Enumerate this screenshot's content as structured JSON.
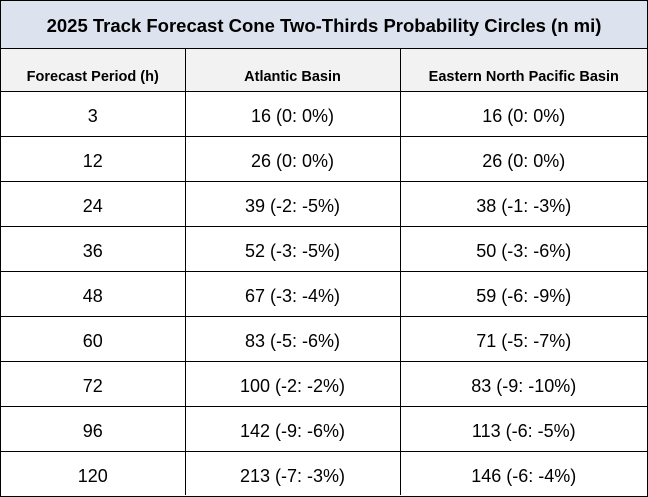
{
  "title": "2025 Track Forecast Cone Two-Thirds Probability Circles (n mi)",
  "columns": [
    "Forecast Period (h)",
    "Atlantic Basin",
    "Eastern North Pacific Basin"
  ],
  "rows": [
    [
      "3",
      "16 (0: 0%)",
      "16 (0: 0%)"
    ],
    [
      "12",
      "26 (0: 0%)",
      "26 (0: 0%)"
    ],
    [
      "24",
      "39 (-2: -5%)",
      "38 (-1: -3%)"
    ],
    [
      "36",
      "52 (-3: -5%)",
      "50 (-3: -6%)"
    ],
    [
      "48",
      "67 (-3: -4%)",
      "59 (-6: -9%)"
    ],
    [
      "60",
      "83 (-5: -6%)",
      "71 (-5: -7%)"
    ],
    [
      "72",
      "100 (-2: -2%)",
      "83 (-9: -10%)"
    ],
    [
      "96",
      "142 (-9: -6%)",
      "113 (-6: -5%)"
    ],
    [
      "120",
      "213 (-7: -3%)",
      "146 (-6: -4%)"
    ]
  ],
  "colors": {
    "title_background": "#dce3ee",
    "header_background": "#f2f2f2",
    "border": "#000000"
  }
}
